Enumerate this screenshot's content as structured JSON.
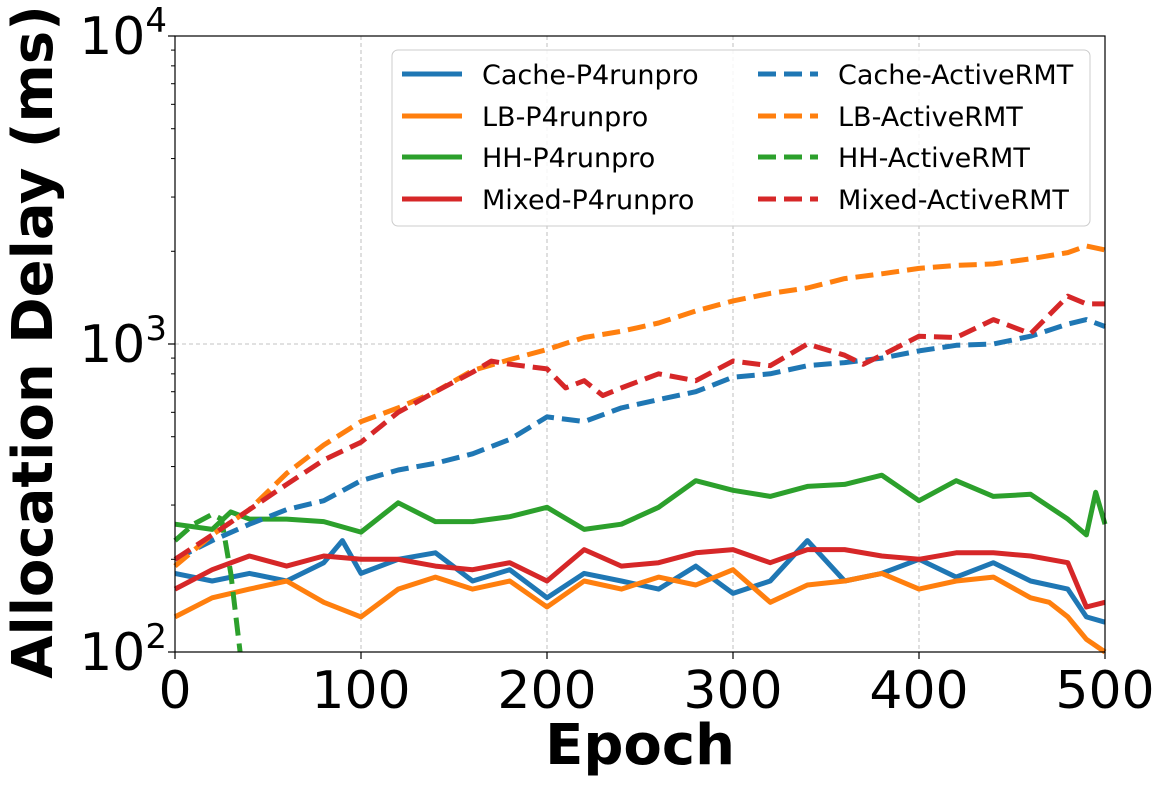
{
  "chart_data": {
    "type": "line",
    "title": "",
    "xlabel": "Epoch",
    "ylabel": "Allocation Delay (ms)",
    "xlim": [
      0,
      500
    ],
    "ylim": [
      100,
      10000
    ],
    "yscale": "log",
    "grid": true,
    "legend_position": "top-right",
    "legend_columns": 2,
    "x_ticks": [
      0,
      100,
      200,
      300,
      400,
      500
    ],
    "x_tick_labels": [
      "0",
      "100",
      "200",
      "300",
      "400",
      "500"
    ],
    "y_ticks": [
      100,
      1000,
      10000
    ],
    "y_tick_labels": [
      {
        "base": "10",
        "exp": "2"
      },
      {
        "base": "10",
        "exp": "3"
      },
      {
        "base": "10",
        "exp": "4"
      }
    ],
    "series": [
      {
        "name": "Cache-P4runpro",
        "color": "#1f77b4",
        "dash": "solid",
        "x": [
          0,
          20,
          40,
          60,
          80,
          90,
          100,
          120,
          140,
          160,
          180,
          200,
          220,
          240,
          260,
          280,
          300,
          320,
          340,
          360,
          380,
          400,
          420,
          440,
          460,
          480,
          490,
          500
        ],
        "y": [
          180,
          170,
          180,
          170,
          195,
          230,
          180,
          200,
          210,
          170,
          185,
          150,
          180,
          170,
          160,
          190,
          155,
          170,
          230,
          170,
          180,
          200,
          175,
          195,
          170,
          160,
          130,
          125
        ]
      },
      {
        "name": "LB-P4runpro",
        "color": "#ff7f0e",
        "dash": "solid",
        "x": [
          0,
          20,
          40,
          60,
          80,
          100,
          120,
          140,
          160,
          180,
          200,
          220,
          240,
          260,
          280,
          300,
          320,
          340,
          360,
          380,
          400,
          420,
          440,
          460,
          470,
          480,
          490,
          500
        ],
        "y": [
          130,
          150,
          160,
          170,
          145,
          130,
          160,
          175,
          160,
          170,
          140,
          170,
          160,
          175,
          165,
          185,
          145,
          165,
          170,
          180,
          160,
          170,
          175,
          150,
          145,
          130,
          110,
          100
        ]
      },
      {
        "name": "HH-P4runpro",
        "color": "#2ca02c",
        "dash": "solid",
        "x": [
          0,
          20,
          30,
          40,
          60,
          80,
          100,
          120,
          140,
          160,
          180,
          200,
          220,
          240,
          260,
          280,
          300,
          320,
          340,
          360,
          380,
          400,
          420,
          440,
          460,
          480,
          490,
          495,
          500
        ],
        "y": [
          260,
          250,
          285,
          270,
          270,
          265,
          245,
          305,
          265,
          265,
          275,
          295,
          250,
          260,
          295,
          360,
          335,
          320,
          345,
          350,
          375,
          310,
          360,
          320,
          325,
          270,
          240,
          330,
          260
        ]
      },
      {
        "name": "Mixed-P4runpro",
        "color": "#d62728",
        "dash": "solid",
        "x": [
          0,
          20,
          40,
          60,
          80,
          100,
          120,
          140,
          160,
          180,
          200,
          220,
          240,
          260,
          280,
          300,
          320,
          340,
          360,
          380,
          400,
          420,
          440,
          460,
          480,
          490,
          500
        ],
        "y": [
          160,
          185,
          205,
          190,
          205,
          200,
          200,
          190,
          185,
          195,
          170,
          215,
          190,
          195,
          210,
          215,
          195,
          215,
          215,
          205,
          200,
          210,
          210,
          205,
          195,
          140,
          145
        ]
      },
      {
        "name": "Cache-ActiveRMT",
        "color": "#1f77b4",
        "dash": "dashed",
        "x": [
          0,
          20,
          40,
          60,
          80,
          100,
          120,
          140,
          160,
          180,
          200,
          220,
          240,
          260,
          280,
          300,
          320,
          340,
          360,
          380,
          400,
          420,
          440,
          460,
          480,
          490,
          500
        ],
        "y": [
          200,
          230,
          260,
          290,
          310,
          360,
          390,
          410,
          440,
          490,
          580,
          560,
          620,
          660,
          700,
          780,
          800,
          850,
          870,
          900,
          950,
          990,
          1000,
          1060,
          1160,
          1200,
          1140
        ]
      },
      {
        "name": "LB-ActiveRMT",
        "color": "#ff7f0e",
        "dash": "dashed",
        "x": [
          0,
          20,
          40,
          60,
          80,
          100,
          120,
          140,
          160,
          180,
          200,
          220,
          240,
          260,
          280,
          300,
          320,
          340,
          360,
          380,
          400,
          420,
          440,
          460,
          480,
          490,
          500
        ],
        "y": [
          190,
          240,
          290,
          380,
          470,
          560,
          620,
          700,
          820,
          890,
          960,
          1050,
          1100,
          1170,
          1280,
          1380,
          1460,
          1520,
          1630,
          1690,
          1760,
          1800,
          1820,
          1890,
          1980,
          2080,
          2020
        ]
      },
      {
        "name": "HH-ActiveRMT",
        "color": "#2ca02c",
        "dash": "dashed",
        "x": [
          0,
          10,
          20,
          25,
          30,
          35
        ],
        "y": [
          230,
          260,
          280,
          270,
          180,
          100
        ]
      },
      {
        "name": "Mixed-ActiveRMT",
        "color": "#d62728",
        "dash": "dashed",
        "x": [
          0,
          20,
          40,
          60,
          80,
          100,
          120,
          140,
          160,
          170,
          180,
          200,
          210,
          220,
          230,
          240,
          260,
          280,
          300,
          320,
          340,
          360,
          370,
          380,
          400,
          420,
          440,
          460,
          480,
          490,
          500
        ],
        "y": [
          200,
          240,
          290,
          350,
          420,
          480,
          600,
          700,
          810,
          880,
          860,
          830,
          720,
          760,
          680,
          720,
          800,
          760,
          880,
          850,
          1000,
          920,
          860,
          920,
          1060,
          1050,
          1200,
          1080,
          1430,
          1350,
          1350
        ]
      }
    ]
  }
}
